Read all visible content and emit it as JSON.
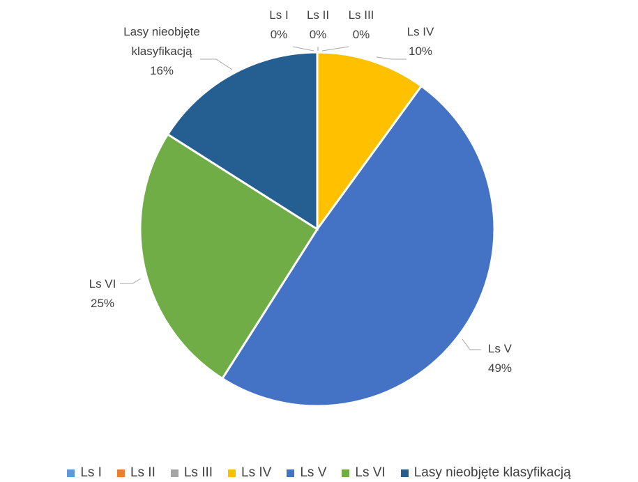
{
  "chart_data": {
    "type": "pie",
    "categories": [
      "Ls I",
      "Ls II",
      "Ls III",
      "Ls IV",
      "Ls V",
      "Ls VI",
      "Lasy nieobjęte klasyfikacją"
    ],
    "values": [
      0,
      0,
      0,
      10,
      49,
      25,
      16
    ],
    "value_labels": [
      "0%",
      "0%",
      "0%",
      "10%",
      "49%",
      "25%",
      "16%"
    ],
    "colors": [
      "#5b9bd5",
      "#ed7d31",
      "#a5a5a5",
      "#ffc000",
      "#4472c4",
      "#70ad47",
      "#255e91"
    ],
    "legend": "bottom"
  }
}
